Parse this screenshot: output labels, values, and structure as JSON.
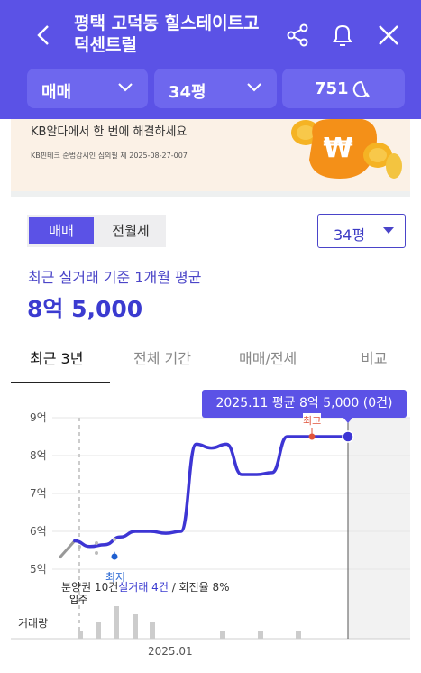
{
  "header": {
    "title": "평택 고덕동 힐스테이트고덕센트럴",
    "filters": [
      {
        "label": "매매"
      },
      {
        "label": "34평"
      },
      {
        "label": "751"
      }
    ]
  },
  "banner": {
    "text": "KB알다에서 한 번에 해결하세요",
    "subtext": "KB핀테크 준법감시인 심의필 제 2025-08-27-007"
  },
  "toggle": {
    "options": [
      "매매",
      "전월세"
    ],
    "selected": "매매"
  },
  "size_select": {
    "label": "34평"
  },
  "summary": {
    "label": "최근 실거래 기준 1개월 평균",
    "value": "8억 5,000"
  },
  "tabs": [
    "최근 3년",
    "전체 기간",
    "매매/전세",
    "비교"
  ],
  "chart_data": {
    "type": "line",
    "y_ticks": [
      "9억",
      "8억",
      "7억",
      "6억",
      "5억"
    ],
    "ylim": [
      5,
      9
    ],
    "x_tick_label": "2025.01",
    "tooltip": "2025.11 평균 8억 5,000 (0건)",
    "markers": {
      "high": "최고",
      "low": "최저",
      "move_in": "입주"
    },
    "volume_label": "거래량",
    "info": {
      "presale_prefix": "분양권 10건",
      "trade_text": "실거래 4건",
      "ratio_text": " / 회전율 8%"
    },
    "series": [
      {
        "x": [
          0,
          1,
          2,
          3,
          4,
          5,
          6,
          7,
          8,
          9,
          10,
          11,
          12,
          13,
          14,
          15,
          16,
          17,
          18,
          19
        ],
        "values": [
          5.3,
          5.75,
          5.6,
          5.65,
          5.85,
          6.0,
          6.0,
          5.95,
          6.0,
          8.3,
          8.2,
          8.3,
          7.5,
          7.5,
          7.55,
          8.5,
          8.5,
          8.5,
          8.5,
          8.5
        ]
      }
    ],
    "volume": [
      1,
      2,
      4,
      3,
      2,
      1,
      1,
      1
    ]
  }
}
